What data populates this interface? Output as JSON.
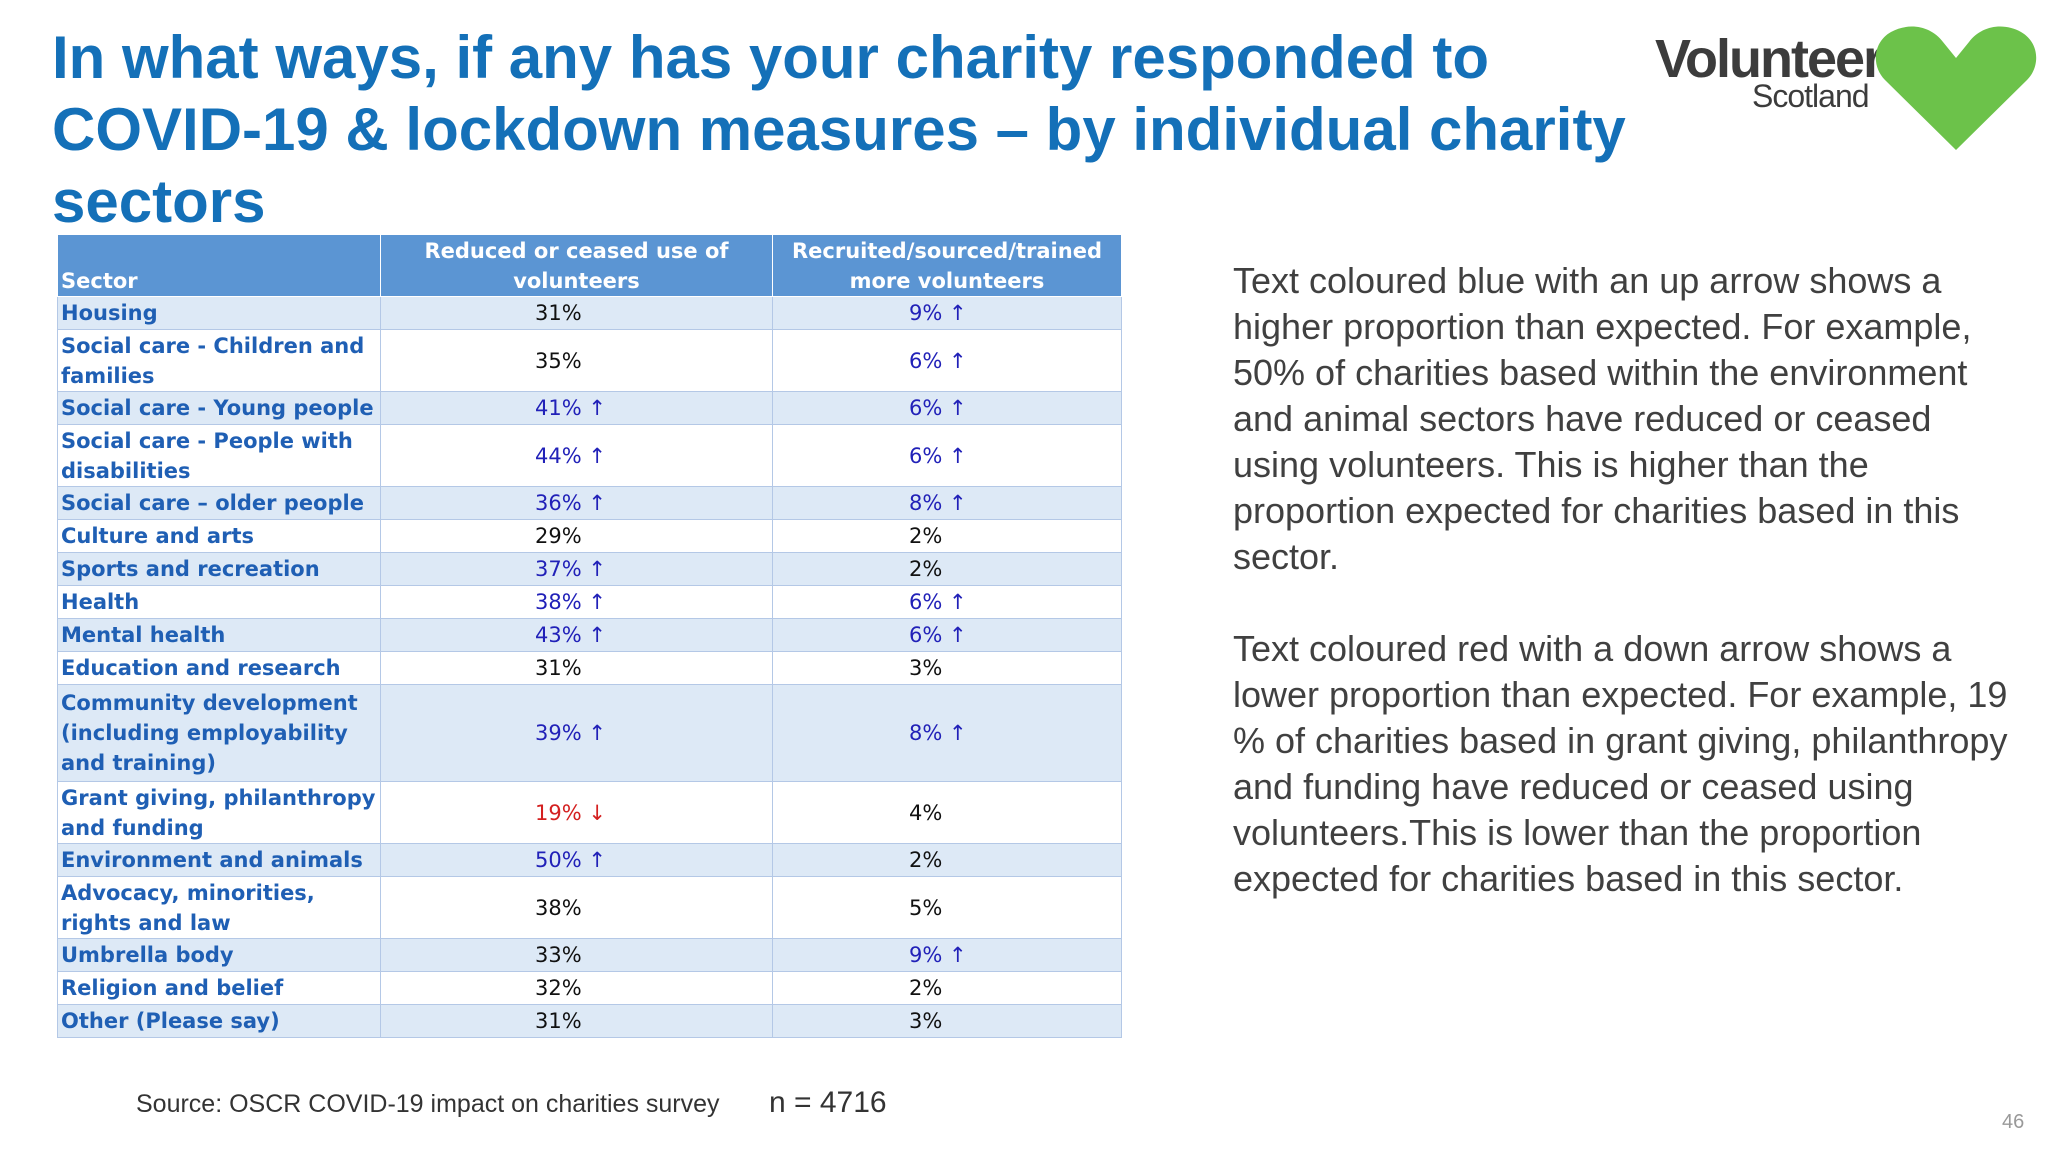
{
  "slide": {
    "title": "In what ways, if any has your charity responded to COVID-19 & lockdown measures – by individual charity sectors",
    "page_number": "46"
  },
  "logo": {
    "word": "Volunteer",
    "sub": "Scotland",
    "heart_color": "#6cc24a"
  },
  "table": {
    "headers": {
      "sector": "Sector",
      "col1": "Reduced or ceased use of volunteers",
      "col2": "Recruited/sourced/trained more volunteers"
    },
    "rows": [
      {
        "sector": "Housing",
        "reduced": "31%",
        "reduced_flag": "none",
        "recruited": "9% ↑",
        "recruited_flag": "higher"
      },
      {
        "sector": "Social care - Children and families",
        "reduced": "35%",
        "reduced_flag": "none",
        "recruited": "6% ↑",
        "recruited_flag": "higher"
      },
      {
        "sector": "Social care - Young people",
        "reduced": "41% ↑",
        "reduced_flag": "higher",
        "recruited": "6% ↑",
        "recruited_flag": "higher"
      },
      {
        "sector": "Social care - People with disabilities",
        "reduced": "44% ↑",
        "reduced_flag": "higher",
        "recruited": "6% ↑",
        "recruited_flag": "higher"
      },
      {
        "sector": "Social care – older people",
        "reduced": "36% ↑",
        "reduced_flag": "higher",
        "recruited": "8% ↑",
        "recruited_flag": "higher"
      },
      {
        "sector": "Culture and arts",
        "reduced": "29%",
        "reduced_flag": "none",
        "recruited": "2%",
        "recruited_flag": "none"
      },
      {
        "sector": "Sports and recreation",
        "reduced": "37% ↑",
        "reduced_flag": "higher",
        "recruited": "2%",
        "recruited_flag": "none"
      },
      {
        "sector": "Health",
        "reduced": "38% ↑",
        "reduced_flag": "higher",
        "recruited": "6% ↑",
        "recruited_flag": "higher"
      },
      {
        "sector": "Mental health",
        "reduced": "43% ↑",
        "reduced_flag": "higher",
        "recruited": "6% ↑",
        "recruited_flag": "higher"
      },
      {
        "sector": "Education and research",
        "reduced": "31%",
        "reduced_flag": "none",
        "recruited": "3%",
        "recruited_flag": "none"
      },
      {
        "sector": "Community development (including employability and training)",
        "reduced": "39% ↑",
        "reduced_flag": "higher",
        "recruited": "8% ↑",
        "recruited_flag": "higher"
      },
      {
        "sector": "Grant giving, philanthropy and funding",
        "reduced": "19% ↓",
        "reduced_flag": "lower",
        "recruited": "4%",
        "recruited_flag": "none"
      },
      {
        "sector": "Environment and animals",
        "reduced": "50% ↑",
        "reduced_flag": "higher",
        "recruited": "2%",
        "recruited_flag": "none"
      },
      {
        "sector": "Advocacy, minorities, rights and law",
        "reduced": "38%",
        "reduced_flag": "none",
        "recruited": "5%",
        "recruited_flag": "none"
      },
      {
        "sector": "Umbrella body",
        "reduced": "33%",
        "reduced_flag": "none",
        "recruited": "9% ↑",
        "recruited_flag": "higher"
      },
      {
        "sector": "Religion and belief",
        "reduced": "32%",
        "reduced_flag": "none",
        "recruited": "2%",
        "recruited_flag": "none"
      },
      {
        "sector": "Other (Please say)",
        "reduced": "31%",
        "reduced_flag": "none",
        "recruited": "3%",
        "recruited_flag": "none"
      }
    ]
  },
  "notes": {
    "blue": "Text coloured blue with an up arrow shows a higher proportion than expected. For example, 50% of charities based within the environment and animal sectors have reduced or ceased using volunteers. This is higher than the proportion expected for charities based in this sector.",
    "red": "Text coloured red with a down arrow shows a lower proportion than expected. For example, 19 % of charities based in grant giving, philanthropy and funding have reduced or ceased using volunteers.This is lower than the proportion expected for charities based in this sector."
  },
  "footer": {
    "source": "Source: OSCR COVID-19 impact on charities survey",
    "n": "n = 4716"
  },
  "colors": {
    "title": "#1470b8",
    "header_bg": "#5b95d3",
    "band_bg": "#dde9f6",
    "higher": "#2121b8",
    "lower": "#d42020"
  }
}
